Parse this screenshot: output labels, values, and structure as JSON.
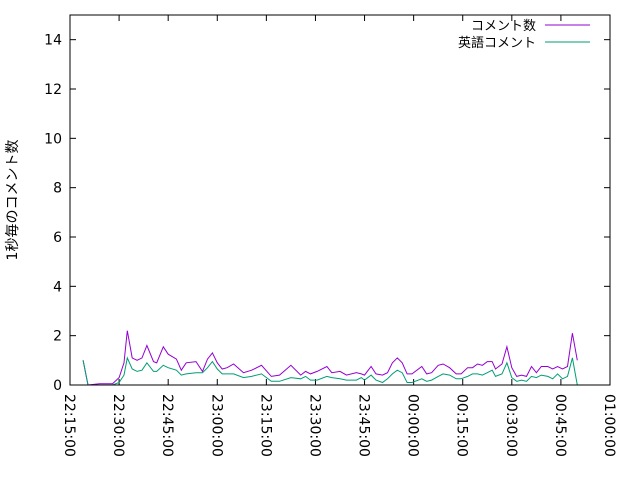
{
  "chart_data": {
    "type": "line",
    "title": "",
    "xlabel": "",
    "ylabel": "1秒毎のコメント数",
    "xlim": [
      "22:15:00",
      "01:00:00"
    ],
    "ylim": [
      0,
      15
    ],
    "x_ticks": [
      "22:15:00",
      "22:30:00",
      "22:45:00",
      "23:00:00",
      "23:15:00",
      "23:30:00",
      "23:45:00",
      "00:00:00",
      "00:15:00",
      "00:30:00",
      "00:45:00",
      "01:00:00"
    ],
    "y_ticks": [
      "0",
      "2",
      "4",
      "6",
      "8",
      "10",
      "12",
      "14"
    ],
    "grid": false,
    "legend_position": "top-right",
    "x": [
      "22:19:00",
      "22:20:30",
      "22:24:00",
      "22:28:00",
      "22:30:00",
      "22:31:30",
      "22:32:30",
      "22:34:00",
      "22:35:30",
      "22:37:00",
      "22:38:30",
      "22:40:30",
      "22:41:30",
      "22:43:30",
      "22:45:00",
      "22:47:30",
      "22:49:00",
      "22:50:30",
      "22:53:30",
      "22:55:30",
      "22:57:00",
      "22:58:30",
      "23:00:00",
      "23:01:30",
      "23:03:00",
      "23:05:00",
      "23:08:00",
      "23:10:30",
      "23:13:30",
      "23:16:30",
      "23:19:00",
      "23:22:30",
      "23:25:30",
      "23:27:00",
      "23:28:30",
      "23:30:30",
      "23:33:30",
      "23:35:00",
      "23:37:30",
      "23:39:30",
      "23:42:30",
      "23:44:00",
      "23:45:00",
      "23:47:00",
      "23:48:30",
      "23:50:30",
      "23:52:00",
      "23:53:30",
      "23:55:00",
      "23:56:30",
      "23:58:00",
      "23:59:30",
      "00:02:30",
      "00:04:00",
      "00:05:30",
      "00:07:30",
      "00:09:00",
      "00:11:00",
      "00:13:00",
      "00:14:30",
      "00:16:30",
      "00:18:00",
      "00:19:30",
      "00:21:00",
      "00:22:30",
      "00:24:00",
      "00:25:00",
      "00:27:00",
      "00:28:30",
      "00:30:00",
      "00:31:30",
      "00:33:00",
      "00:34:30",
      "00:36:00",
      "00:37:30",
      "00:39:00",
      "00:41:00",
      "00:42:30",
      "00:44:00",
      "00:45:30",
      "00:47:00",
      "00:48:30",
      "00:50:00"
    ],
    "series": [
      {
        "name": "コメント数",
        "color": "#9400d3",
        "values": [
          1.0,
          0,
          0.05,
          0.05,
          0.3,
          0.9,
          2.2,
          1.1,
          1.0,
          1.1,
          1.6,
          0.95,
          0.9,
          1.55,
          1.25,
          1.05,
          0.6,
          0.9,
          0.95,
          0.55,
          1.05,
          1.3,
          0.9,
          0.65,
          0.7,
          0.85,
          0.5,
          0.6,
          0.8,
          0.35,
          0.4,
          0.8,
          0.4,
          0.55,
          0.45,
          0.55,
          0.75,
          0.5,
          0.55,
          0.4,
          0.5,
          0.45,
          0.4,
          0.75,
          0.45,
          0.4,
          0.5,
          0.9,
          1.1,
          0.9,
          0.45,
          0.45,
          0.75,
          0.45,
          0.5,
          0.8,
          0.85,
          0.7,
          0.45,
          0.45,
          0.7,
          0.7,
          0.85,
          0.8,
          0.95,
          0.95,
          0.65,
          0.85,
          1.55,
          0.7,
          0.35,
          0.4,
          0.35,
          0.75,
          0.5,
          0.75,
          0.75,
          0.65,
          0.75,
          0.65,
          0.75,
          2.1,
          1.0
        ]
      },
      {
        "name": "英語コメント",
        "color": "#009e73",
        "values": [
          1.0,
          0,
          0,
          0,
          0.1,
          0.4,
          1.1,
          0.65,
          0.55,
          0.6,
          0.9,
          0.55,
          0.55,
          0.8,
          0.7,
          0.6,
          0.4,
          0.45,
          0.5,
          0.5,
          0.7,
          0.95,
          0.65,
          0.45,
          0.45,
          0.45,
          0.3,
          0.35,
          0.45,
          0.15,
          0.15,
          0.3,
          0.25,
          0.35,
          0.2,
          0.2,
          0.35,
          0.3,
          0.25,
          0.2,
          0.2,
          0.3,
          0.2,
          0.4,
          0.2,
          0.1,
          0.25,
          0.45,
          0.6,
          0.5,
          0.1,
          0.1,
          0.25,
          0.15,
          0.2,
          0.35,
          0.45,
          0.4,
          0.25,
          0.25,
          0.35,
          0.45,
          0.45,
          0.4,
          0.5,
          0.6,
          0.35,
          0.45,
          0.9,
          0.3,
          0.15,
          0.2,
          0.15,
          0.35,
          0.3,
          0.4,
          0.35,
          0.25,
          0.45,
          0.25,
          0.35,
          1.1,
          0
        ]
      }
    ]
  }
}
